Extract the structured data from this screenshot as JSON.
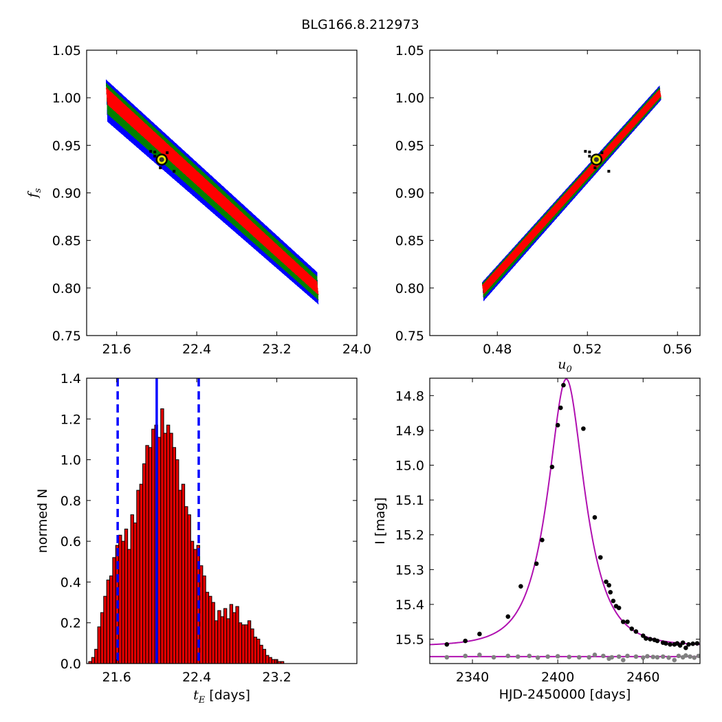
{
  "title": "BLG166.8.212973",
  "colors": {
    "region_1sigma": "#ff0000",
    "region_2sigma": "#008000",
    "region_3sigma": "#0000ff",
    "best_fit_marker": "#e6e600",
    "hist_bar": "#e60000",
    "vline": "#0000ff",
    "model_curve": "#b010b0",
    "data_points": "#000000",
    "residual_points": "#808080"
  },
  "chart_data": [
    {
      "type": "heatmap",
      "panel": "top-left",
      "title": "",
      "xlabel": "",
      "ylabel": "f_s",
      "xlim": [
        21.3,
        24.0
      ],
      "ylim": [
        0.75,
        1.05
      ],
      "xticks": [
        "21.6",
        "22.4",
        "23.2",
        "24.0"
      ],
      "yticks": [
        "0.75",
        "0.80",
        "0.85",
        "0.90",
        "0.95",
        "1.00",
        "1.05"
      ],
      "ridge": {
        "x_start": 21.51,
        "y_start": 1.005,
        "x_end": 23.6,
        "y_end": 0.8
      },
      "sigma_half_widths": [
        0.012,
        0.022,
        0.03
      ],
      "best_fit": {
        "x": 22.05,
        "y": 0.935
      }
    },
    {
      "type": "heatmap",
      "panel": "top-right",
      "title": "",
      "xlabel": "u_0",
      "ylabel": "",
      "xlim": [
        0.45,
        0.57
      ],
      "ylim": [
        0.75,
        1.05
      ],
      "xticks": [
        "0.48",
        "0.52",
        "0.56"
      ],
      "yticks": [
        "0.75",
        "0.80",
        "0.85",
        "0.90",
        "0.95",
        "1.00",
        "1.05"
      ],
      "ridge": {
        "x_start": 0.474,
        "y_start": 0.8,
        "x_end": 0.552,
        "y_end": 1.005
      },
      "sigma_half_widths": [
        0.006,
        0.01,
        0.013
      ],
      "best_fit": {
        "x": 0.524,
        "y": 0.935
      }
    },
    {
      "type": "bar",
      "panel": "bottom-left",
      "xlabel": "t_E [days]",
      "ylabel": "normed N",
      "xlim": [
        21.3,
        24.0
      ],
      "ylim": [
        0,
        1.4
      ],
      "xticks": [
        "21.6",
        "22.4",
        "23.2"
      ],
      "yticks": [
        "0.0",
        "0.2",
        "0.4",
        "0.6",
        "0.8",
        "1.0",
        "1.2",
        "1.4"
      ],
      "bin_start": 21.32,
      "bin_width": 0.03,
      "values": [
        0.01,
        0.03,
        0.07,
        0.18,
        0.25,
        0.33,
        0.41,
        0.43,
        0.52,
        0.58,
        0.63,
        0.6,
        0.66,
        0.56,
        0.73,
        0.69,
        0.85,
        0.88,
        0.98,
        1.07,
        1.06,
        1.15,
        1.17,
        1.11,
        1.25,
        1.13,
        1.17,
        1.13,
        1.06,
        1.0,
        0.85,
        0.88,
        0.77,
        0.73,
        0.6,
        0.56,
        0.58,
        0.48,
        0.43,
        0.35,
        0.33,
        0.3,
        0.21,
        0.26,
        0.23,
        0.27,
        0.22,
        0.29,
        0.25,
        0.28,
        0.2,
        0.19,
        0.19,
        0.21,
        0.17,
        0.13,
        0.12,
        0.09,
        0.07,
        0.04,
        0.03,
        0.02,
        0.02,
        0.01,
        0.01
      ],
      "solid_line_x": 22.0,
      "dashed_lines_x": [
        21.61,
        22.42
      ]
    },
    {
      "type": "scatter",
      "panel": "bottom-right",
      "xlabel": "HJD-2450000 [days]",
      "ylabel": "I [mag]",
      "xlim": [
        2310,
        2500
      ],
      "ylim": [
        15.57,
        14.75
      ],
      "xticks": [
        "2340",
        "2400",
        "2460"
      ],
      "yticks": [
        "14.8",
        "14.9",
        "15.0",
        "15.1",
        "15.2",
        "15.3",
        "15.4",
        "15.5"
      ],
      "model": {
        "t0": 2406,
        "tE": 22,
        "u0": 0.524,
        "fs": 0.935,
        "baseline": 15.52
      },
      "residual_baseline": 15.55,
      "points": [
        [
          2322,
          15.515
        ],
        [
          2335,
          15.505
        ],
        [
          2345,
          15.485
        ],
        [
          2365,
          15.435
        ],
        [
          2374,
          15.348
        ],
        [
          2385,
          15.283
        ],
        [
          2389,
          15.215
        ],
        [
          2396,
          15.005
        ],
        [
          2400,
          14.885
        ],
        [
          2402,
          14.835
        ],
        [
          2404,
          14.77
        ],
        [
          2418,
          14.895
        ],
        [
          2426,
          15.15
        ],
        [
          2430,
          15.265
        ],
        [
          2434,
          15.335
        ],
        [
          2436,
          15.345
        ],
        [
          2437,
          15.365
        ],
        [
          2439,
          15.39
        ],
        [
          2441,
          15.405
        ],
        [
          2443,
          15.41
        ],
        [
          2446,
          15.45
        ],
        [
          2449,
          15.45
        ],
        [
          2452,
          15.47
        ],
        [
          2455,
          15.478
        ],
        [
          2460,
          15.49
        ],
        [
          2462,
          15.498
        ],
        [
          2465,
          15.5
        ],
        [
          2468,
          15.502
        ],
        [
          2470,
          15.505
        ],
        [
          2474,
          15.51
        ],
        [
          2476,
          15.512
        ],
        [
          2479,
          15.515
        ],
        [
          2482,
          15.515
        ],
        [
          2484,
          15.512
        ],
        [
          2486,
          15.518
        ],
        [
          2488,
          15.51
        ],
        [
          2490,
          15.525
        ],
        [
          2492,
          15.515
        ],
        [
          2495,
          15.513
        ],
        [
          2498,
          15.512
        ]
      ],
      "residual_points": [
        [
          2322,
          15.552
        ],
        [
          2335,
          15.548
        ],
        [
          2345,
          15.545
        ],
        [
          2355,
          15.552
        ],
        [
          2365,
          15.548
        ],
        [
          2372,
          15.55
        ],
        [
          2380,
          15.548
        ],
        [
          2386,
          15.553
        ],
        [
          2393,
          15.55
        ],
        [
          2400,
          15.549
        ],
        [
          2408,
          15.551
        ],
        [
          2415,
          15.552
        ],
        [
          2422,
          15.552
        ],
        [
          2426,
          15.545
        ],
        [
          2432,
          15.548
        ],
        [
          2436,
          15.556
        ],
        [
          2438,
          15.552
        ],
        [
          2443,
          15.55
        ],
        [
          2446,
          15.56
        ],
        [
          2449,
          15.548
        ],
        [
          2455,
          15.55
        ],
        [
          2460,
          15.553
        ],
        [
          2463,
          15.549
        ],
        [
          2467,
          15.551
        ],
        [
          2470,
          15.552
        ],
        [
          2474,
          15.55
        ],
        [
          2478,
          15.553
        ],
        [
          2482,
          15.56
        ],
        [
          2485,
          15.548
        ],
        [
          2488,
          15.552
        ],
        [
          2490,
          15.547
        ],
        [
          2493,
          15.55
        ],
        [
          2496,
          15.553
        ],
        [
          2499,
          15.548
        ]
      ]
    }
  ]
}
